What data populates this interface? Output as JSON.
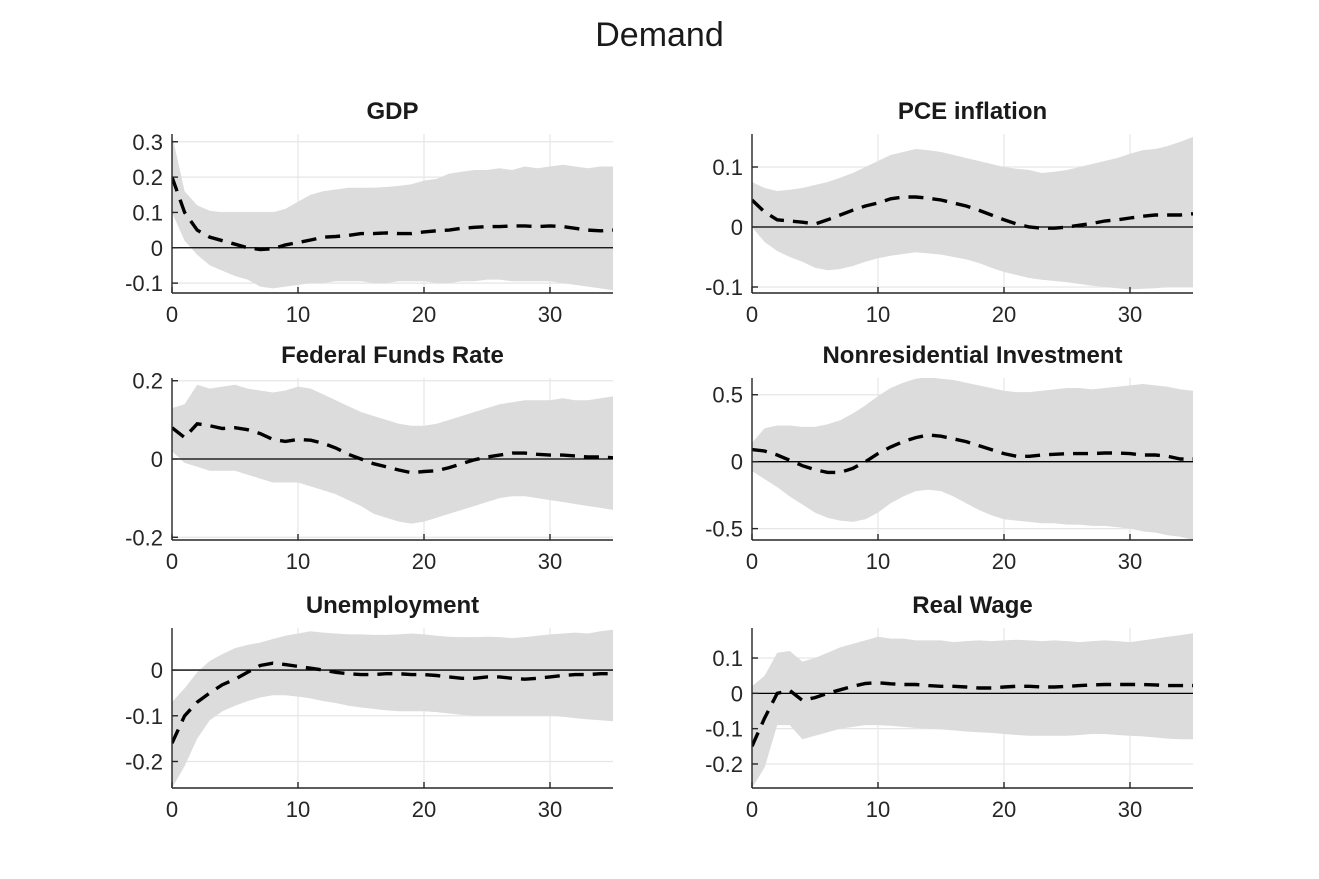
{
  "figure": {
    "title": "Demand",
    "background_color": "#ffffff",
    "band_color": "#dcdcdc",
    "grid_color": "#e6e6e6",
    "axis_color": "#262626",
    "line_color": "#000000"
  },
  "chart_data": [
    {
      "title": "GDP",
      "type": "line",
      "line_style": "dashed",
      "band": "shaded confidence band",
      "grid": true,
      "zero_line": true,
      "xlim": [
        0,
        35
      ],
      "ylim": [
        -0.128,
        0.322
      ],
      "xticks": [
        0,
        10,
        20,
        30
      ],
      "yticks": [
        -0.1,
        0,
        0.1,
        0.2,
        0.3
      ],
      "x": [
        0,
        1,
        2,
        3,
        4,
        5,
        6,
        7,
        8,
        9,
        10,
        11,
        12,
        13,
        14,
        15,
        16,
        17,
        18,
        19,
        20,
        21,
        22,
        23,
        24,
        25,
        26,
        27,
        28,
        29,
        30,
        31,
        32,
        33,
        34,
        35
      ],
      "median": [
        0.2,
        0.1,
        0.05,
        0.03,
        0.02,
        0.01,
        0.0,
        -0.005,
        -0.003,
        0.008,
        0.015,
        0.022,
        0.03,
        0.032,
        0.035,
        0.04,
        0.04,
        0.042,
        0.04,
        0.04,
        0.045,
        0.048,
        0.05,
        0.055,
        0.058,
        0.06,
        0.06,
        0.062,
        0.062,
        0.06,
        0.062,
        0.06,
        0.055,
        0.05,
        0.048,
        0.05
      ],
      "upper": [
        0.32,
        0.16,
        0.12,
        0.105,
        0.1,
        0.1,
        0.1,
        0.1,
        0.1,
        0.11,
        0.13,
        0.15,
        0.16,
        0.165,
        0.17,
        0.17,
        0.17,
        0.172,
        0.175,
        0.18,
        0.19,
        0.195,
        0.21,
        0.215,
        0.22,
        0.22,
        0.225,
        0.22,
        0.23,
        0.225,
        0.23,
        0.235,
        0.23,
        0.225,
        0.23,
        0.23
      ],
      "lower": [
        0.1,
        0.02,
        -0.02,
        -0.05,
        -0.065,
        -0.08,
        -0.09,
        -0.11,
        -0.115,
        -0.11,
        -0.105,
        -0.1,
        -0.1,
        -0.095,
        -0.095,
        -0.095,
        -0.1,
        -0.1,
        -0.095,
        -0.095,
        -0.095,
        -0.1,
        -0.1,
        -0.095,
        -0.095,
        -0.09,
        -0.09,
        -0.095,
        -0.095,
        -0.095,
        -0.095,
        -0.1,
        -0.105,
        -0.11,
        -0.115,
        -0.12
      ]
    },
    {
      "title": "PCE inflation",
      "type": "line",
      "line_style": "dashed",
      "band": "shaded confidence band",
      "grid": true,
      "zero_line": true,
      "xlim": [
        0,
        35
      ],
      "ylim": [
        -0.11,
        0.155
      ],
      "xticks": [
        0,
        10,
        20,
        30
      ],
      "yticks": [
        -0.1,
        0,
        0.1
      ],
      "x": [
        0,
        1,
        2,
        3,
        4,
        5,
        6,
        7,
        8,
        9,
        10,
        11,
        12,
        13,
        14,
        15,
        16,
        17,
        18,
        19,
        20,
        21,
        22,
        23,
        24,
        25,
        26,
        27,
        28,
        29,
        30,
        31,
        32,
        33,
        34,
        35
      ],
      "median": [
        0.045,
        0.025,
        0.012,
        0.01,
        0.008,
        0.005,
        0.012,
        0.02,
        0.028,
        0.035,
        0.04,
        0.047,
        0.05,
        0.05,
        0.048,
        0.045,
        0.04,
        0.035,
        0.028,
        0.02,
        0.012,
        0.005,
        0.0,
        -0.002,
        -0.002,
        0.0,
        0.003,
        0.006,
        0.01,
        0.012,
        0.015,
        0.018,
        0.02,
        0.02,
        0.02,
        0.022
      ],
      "upper": [
        0.075,
        0.065,
        0.06,
        0.062,
        0.065,
        0.07,
        0.075,
        0.082,
        0.09,
        0.1,
        0.11,
        0.12,
        0.125,
        0.13,
        0.128,
        0.125,
        0.12,
        0.115,
        0.11,
        0.105,
        0.1,
        0.097,
        0.095,
        0.09,
        0.092,
        0.095,
        0.1,
        0.105,
        0.11,
        0.115,
        0.122,
        0.128,
        0.13,
        0.135,
        0.142,
        0.15
      ],
      "lower": [
        0.0,
        -0.025,
        -0.04,
        -0.05,
        -0.058,
        -0.068,
        -0.072,
        -0.07,
        -0.065,
        -0.058,
        -0.052,
        -0.048,
        -0.045,
        -0.042,
        -0.044,
        -0.046,
        -0.05,
        -0.054,
        -0.06,
        -0.068,
        -0.075,
        -0.08,
        -0.085,
        -0.088,
        -0.09,
        -0.092,
        -0.095,
        -0.098,
        -0.1,
        -0.102,
        -0.104,
        -0.103,
        -0.102,
        -0.1,
        -0.1,
        -0.1
      ]
    },
    {
      "title": "Federal Funds Rate",
      "type": "line",
      "line_style": "dashed",
      "band": "shaded confidence band",
      "grid": true,
      "zero_line": true,
      "xlim": [
        0,
        35
      ],
      "ylim": [
        -0.207,
        0.207
      ],
      "xticks": [
        0,
        10,
        20,
        30
      ],
      "yticks": [
        -0.2,
        0,
        0.2
      ],
      "x": [
        0,
        1,
        2,
        3,
        4,
        5,
        6,
        7,
        8,
        9,
        10,
        11,
        12,
        13,
        14,
        15,
        16,
        17,
        18,
        19,
        20,
        21,
        22,
        23,
        24,
        25,
        26,
        27,
        28,
        29,
        30,
        31,
        32,
        33,
        34,
        35
      ],
      "median": [
        0.08,
        0.055,
        0.09,
        0.085,
        0.078,
        0.08,
        0.075,
        0.065,
        0.05,
        0.045,
        0.05,
        0.048,
        0.04,
        0.028,
        0.012,
        0.0,
        -0.012,
        -0.02,
        -0.028,
        -0.035,
        -0.032,
        -0.03,
        -0.022,
        -0.012,
        -0.002,
        0.005,
        0.01,
        0.015,
        0.015,
        0.012,
        0.01,
        0.01,
        0.008,
        0.005,
        0.005,
        0.003
      ],
      "upper": [
        0.13,
        0.14,
        0.19,
        0.18,
        0.185,
        0.19,
        0.18,
        0.175,
        0.17,
        0.175,
        0.185,
        0.18,
        0.165,
        0.15,
        0.135,
        0.12,
        0.11,
        0.1,
        0.09,
        0.085,
        0.085,
        0.09,
        0.1,
        0.11,
        0.12,
        0.13,
        0.14,
        0.145,
        0.15,
        0.15,
        0.15,
        0.155,
        0.15,
        0.15,
        0.155,
        0.16
      ],
      "lower": [
        0.02,
        -0.01,
        -0.02,
        -0.03,
        -0.03,
        -0.03,
        -0.04,
        -0.05,
        -0.06,
        -0.06,
        -0.06,
        -0.07,
        -0.08,
        -0.09,
        -0.105,
        -0.12,
        -0.14,
        -0.15,
        -0.16,
        -0.165,
        -0.16,
        -0.15,
        -0.14,
        -0.13,
        -0.12,
        -0.11,
        -0.1,
        -0.095,
        -0.095,
        -0.1,
        -0.105,
        -0.11,
        -0.115,
        -0.12,
        -0.125,
        -0.13
      ]
    },
    {
      "title": "Nonresidential Investment",
      "type": "line",
      "line_style": "dashed",
      "band": "shaded confidence band",
      "grid": true,
      "zero_line": true,
      "xlim": [
        0,
        35
      ],
      "ylim": [
        -0.585,
        0.625
      ],
      "xticks": [
        0,
        10,
        20,
        30
      ],
      "yticks": [
        -0.5,
        0,
        0.5
      ],
      "x": [
        0,
        1,
        2,
        3,
        4,
        5,
        6,
        7,
        8,
        9,
        10,
        11,
        12,
        13,
        14,
        15,
        16,
        17,
        18,
        19,
        20,
        21,
        22,
        23,
        24,
        25,
        26,
        27,
        28,
        29,
        30,
        31,
        32,
        33,
        34,
        35
      ],
      "median": [
        0.09,
        0.08,
        0.05,
        0.01,
        -0.03,
        -0.06,
        -0.08,
        -0.08,
        -0.05,
        0.0,
        0.06,
        0.11,
        0.15,
        0.18,
        0.2,
        0.19,
        0.17,
        0.15,
        0.12,
        0.09,
        0.06,
        0.04,
        0.04,
        0.05,
        0.055,
        0.06,
        0.06,
        0.06,
        0.065,
        0.065,
        0.06,
        0.05,
        0.05,
        0.04,
        0.02,
        0.02
      ],
      "upper": [
        0.14,
        0.25,
        0.27,
        0.27,
        0.26,
        0.26,
        0.28,
        0.31,
        0.36,
        0.42,
        0.49,
        0.55,
        0.59,
        0.62,
        0.63,
        0.62,
        0.61,
        0.59,
        0.57,
        0.55,
        0.53,
        0.52,
        0.52,
        0.53,
        0.54,
        0.55,
        0.55,
        0.54,
        0.55,
        0.56,
        0.57,
        0.58,
        0.57,
        0.56,
        0.54,
        0.53
      ],
      "lower": [
        -0.07,
        -0.13,
        -0.19,
        -0.26,
        -0.32,
        -0.38,
        -0.42,
        -0.44,
        -0.45,
        -0.43,
        -0.38,
        -0.31,
        -0.26,
        -0.22,
        -0.21,
        -0.22,
        -0.26,
        -0.31,
        -0.36,
        -0.4,
        -0.43,
        -0.44,
        -0.45,
        -0.46,
        -0.46,
        -0.47,
        -0.47,
        -0.48,
        -0.48,
        -0.49,
        -0.5,
        -0.52,
        -0.53,
        -0.55,
        -0.56,
        -0.585
      ]
    },
    {
      "title": "Unemployment",
      "type": "line",
      "line_style": "dashed",
      "band": "shaded confidence band",
      "grid": true,
      "zero_line": true,
      "xlim": [
        0,
        35
      ],
      "ylim": [
        -0.258,
        0.092
      ],
      "xticks": [
        0,
        10,
        20,
        30
      ],
      "yticks": [
        -0.2,
        -0.1,
        0
      ],
      "x": [
        0,
        1,
        2,
        3,
        4,
        5,
        6,
        7,
        8,
        9,
        10,
        11,
        12,
        13,
        14,
        15,
        16,
        17,
        18,
        19,
        20,
        21,
        22,
        23,
        24,
        25,
        26,
        27,
        28,
        29,
        30,
        31,
        32,
        33,
        34,
        35
      ],
      "median": [
        -0.16,
        -0.1,
        -0.07,
        -0.05,
        -0.032,
        -0.02,
        -0.005,
        0.01,
        0.015,
        0.012,
        0.008,
        0.004,
        0.0,
        -0.005,
        -0.008,
        -0.01,
        -0.01,
        -0.008,
        -0.008,
        -0.01,
        -0.01,
        -0.012,
        -0.015,
        -0.018,
        -0.018,
        -0.015,
        -0.015,
        -0.018,
        -0.02,
        -0.018,
        -0.015,
        -0.012,
        -0.01,
        -0.01,
        -0.008,
        -0.008
      ],
      "upper": [
        -0.07,
        -0.04,
        -0.005,
        0.02,
        0.035,
        0.048,
        0.055,
        0.06,
        0.068,
        0.075,
        0.08,
        0.085,
        0.082,
        0.08,
        0.078,
        0.078,
        0.077,
        0.077,
        0.078,
        0.08,
        0.078,
        0.075,
        0.073,
        0.072,
        0.072,
        0.073,
        0.072,
        0.07,
        0.072,
        0.075,
        0.078,
        0.08,
        0.082,
        0.08,
        0.085,
        0.088
      ],
      "lower": [
        -0.258,
        -0.21,
        -0.15,
        -0.11,
        -0.09,
        -0.078,
        -0.068,
        -0.06,
        -0.055,
        -0.055,
        -0.058,
        -0.062,
        -0.068,
        -0.072,
        -0.078,
        -0.082,
        -0.085,
        -0.088,
        -0.09,
        -0.09,
        -0.09,
        -0.092,
        -0.095,
        -0.098,
        -0.1,
        -0.1,
        -0.1,
        -0.1,
        -0.1,
        -0.1,
        -0.1,
        -0.102,
        -0.105,
        -0.108,
        -0.11,
        -0.112
      ]
    },
    {
      "title": "Real Wage",
      "type": "line",
      "line_style": "dashed",
      "band": "shaded confidence band",
      "grid": true,
      "zero_line": true,
      "xlim": [
        0,
        35
      ],
      "ylim": [
        -0.268,
        0.185
      ],
      "xticks": [
        0,
        10,
        20,
        30
      ],
      "yticks": [
        -0.2,
        -0.1,
        0,
        0.1
      ],
      "x": [
        0,
        1,
        2,
        3,
        4,
        5,
        6,
        7,
        8,
        9,
        10,
        11,
        12,
        13,
        14,
        15,
        16,
        17,
        18,
        19,
        20,
        21,
        22,
        23,
        24,
        25,
        26,
        27,
        28,
        29,
        30,
        31,
        32,
        33,
        34,
        35
      ],
      "median": [
        -0.15,
        -0.07,
        0.0,
        0.008,
        -0.02,
        -0.012,
        0.0,
        0.01,
        0.02,
        0.028,
        0.03,
        0.027,
        0.025,
        0.025,
        0.022,
        0.02,
        0.02,
        0.018,
        0.015,
        0.015,
        0.018,
        0.02,
        0.02,
        0.018,
        0.018,
        0.02,
        0.022,
        0.024,
        0.025,
        0.025,
        0.025,
        0.025,
        0.024,
        0.022,
        0.022,
        0.022
      ],
      "upper": [
        0.02,
        0.05,
        0.115,
        0.12,
        0.09,
        0.1,
        0.115,
        0.13,
        0.14,
        0.15,
        0.16,
        0.155,
        0.155,
        0.15,
        0.15,
        0.15,
        0.145,
        0.148,
        0.15,
        0.148,
        0.15,
        0.152,
        0.15,
        0.148,
        0.15,
        0.148,
        0.145,
        0.148,
        0.15,
        0.148,
        0.145,
        0.15,
        0.155,
        0.16,
        0.165,
        0.17
      ],
      "lower": [
        -0.268,
        -0.21,
        -0.09,
        -0.09,
        -0.13,
        -0.12,
        -0.11,
        -0.1,
        -0.095,
        -0.09,
        -0.09,
        -0.092,
        -0.095,
        -0.098,
        -0.1,
        -0.102,
        -0.105,
        -0.108,
        -0.11,
        -0.112,
        -0.115,
        -0.118,
        -0.12,
        -0.12,
        -0.12,
        -0.12,
        -0.118,
        -0.115,
        -0.115,
        -0.118,
        -0.12,
        -0.122,
        -0.125,
        -0.128,
        -0.13,
        -0.13
      ]
    }
  ]
}
